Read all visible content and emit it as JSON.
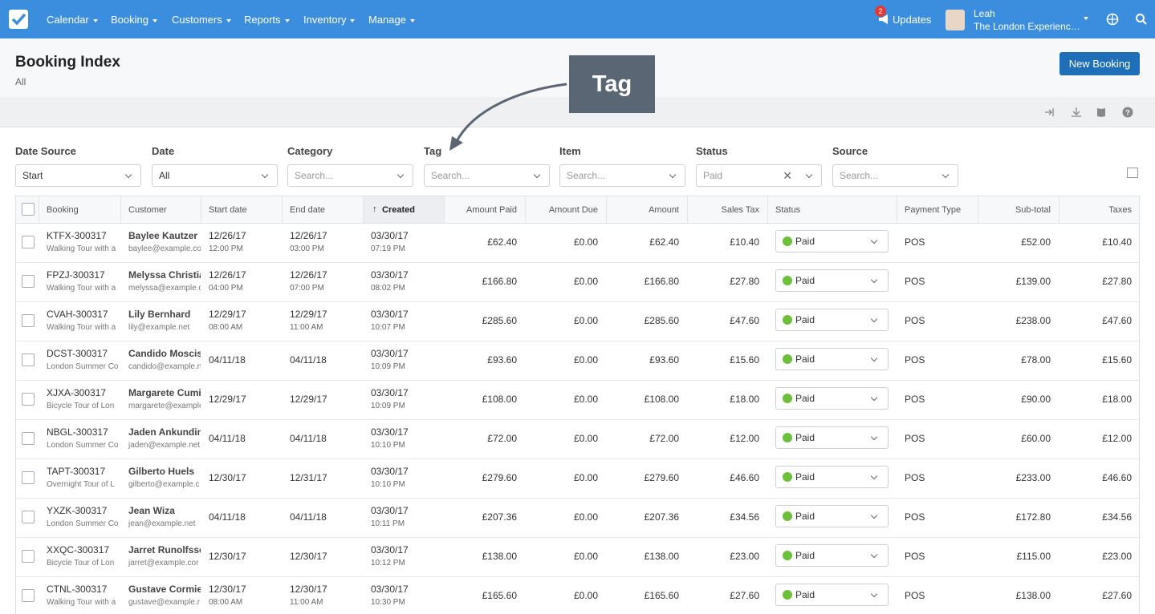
{
  "nav": {
    "menu": [
      "Calendar",
      "Booking",
      "Customers",
      "Reports",
      "Inventory",
      "Manage"
    ],
    "badge": "2",
    "updates": "Updates",
    "user": "Leah",
    "org": "The London Experienc…"
  },
  "header": {
    "title": "Booking Index",
    "subtitle": "All",
    "button": "New Booking"
  },
  "annotation": "Tag",
  "filters": [
    {
      "label": "Date Source",
      "value": "Start"
    },
    {
      "label": "Date",
      "value": "All"
    },
    {
      "label": "Category",
      "value": "Search..."
    },
    {
      "label": "Tag",
      "value": "Search..."
    },
    {
      "label": "Item",
      "value": "Search..."
    },
    {
      "label": "Status",
      "value": "Paid"
    },
    {
      "label": "Source",
      "value": "Search..."
    }
  ],
  "table": {
    "columns": [
      "Booking",
      "Customer",
      "Start date",
      "End date",
      "Created",
      "Amount Paid",
      "Amount Due",
      "Amount",
      "Sales Tax",
      "Status",
      "Payment Type",
      "Sub-total",
      "Taxes"
    ],
    "rows": [
      [
        [
          "KTFX-300317",
          "Walking Tour with a"
        ],
        [
          "Baylee Kautzer",
          "baylee@example.co"
        ],
        [
          "12/26/17",
          "12:00 PM"
        ],
        [
          "12/26/17",
          "03:00 PM"
        ],
        [
          "03/30/17",
          "07:19 PM"
        ],
        [
          "£62.40"
        ],
        [
          "£0.00"
        ],
        [
          "£62.40"
        ],
        [
          "£10.40"
        ],
        [
          "Paid"
        ],
        [
          "POS"
        ],
        [
          "£52.00"
        ],
        [
          "£10.40"
        ]
      ],
      [
        [
          "FPZJ-300317",
          "Walking Tour with a"
        ],
        [
          "Melyssa Christia",
          "melyssa@example.c"
        ],
        [
          "12/26/17",
          "04:00 PM"
        ],
        [
          "12/26/17",
          "07:00 PM"
        ],
        [
          "03/30/17",
          "08:02 PM"
        ],
        [
          "£166.80"
        ],
        [
          "£0.00"
        ],
        [
          "£166.80"
        ],
        [
          "£27.80"
        ],
        [
          "Paid"
        ],
        [
          "POS"
        ],
        [
          "£139.00"
        ],
        [
          "£27.80"
        ]
      ],
      [
        [
          "CVAH-300317",
          "Walking Tour with a"
        ],
        [
          "Lily Bernhard",
          "lily@example.net"
        ],
        [
          "12/29/17",
          "08:00 AM"
        ],
        [
          "12/29/17",
          "11:00 AM"
        ],
        [
          "03/30/17",
          "10:07 PM"
        ],
        [
          "£285.60"
        ],
        [
          "£0.00"
        ],
        [
          "£285.60"
        ],
        [
          "£47.60"
        ],
        [
          "Paid"
        ],
        [
          "POS"
        ],
        [
          "£238.00"
        ],
        [
          "£47.60"
        ]
      ],
      [
        [
          "DCST-300317",
          "London Summer Co"
        ],
        [
          "Candido Moscis",
          "candido@example.n"
        ],
        [
          "04/11/18"
        ],
        [
          "04/11/18"
        ],
        [
          "03/30/17",
          "10:09 PM"
        ],
        [
          "£93.60"
        ],
        [
          "£0.00"
        ],
        [
          "£93.60"
        ],
        [
          "£15.60"
        ],
        [
          "Paid"
        ],
        [
          "POS"
        ],
        [
          "£78.00"
        ],
        [
          "£15.60"
        ]
      ],
      [
        [
          "XJXA-300317",
          "Bicycle Tour of Lon"
        ],
        [
          "Margarete Cumi",
          "margarete@example"
        ],
        [
          "12/29/17"
        ],
        [
          "12/29/17"
        ],
        [
          "03/30/17",
          "10:09 PM"
        ],
        [
          "£108.00"
        ],
        [
          "£0.00"
        ],
        [
          "£108.00"
        ],
        [
          "£18.00"
        ],
        [
          "Paid"
        ],
        [
          "POS"
        ],
        [
          "£90.00"
        ],
        [
          "£18.00"
        ]
      ],
      [
        [
          "NBGL-300317",
          "London Summer Co"
        ],
        [
          "Jaden Ankundin",
          "jaden@example.net"
        ],
        [
          "04/11/18"
        ],
        [
          "04/11/18"
        ],
        [
          "03/30/17",
          "10:10 PM"
        ],
        [
          "£72.00"
        ],
        [
          "£0.00"
        ],
        [
          "£72.00"
        ],
        [
          "£12.00"
        ],
        [
          "Paid"
        ],
        [
          "POS"
        ],
        [
          "£60.00"
        ],
        [
          "£12.00"
        ]
      ],
      [
        [
          "TAPT-300317",
          "Overnight Tour of L"
        ],
        [
          "Gilberto Huels",
          "gilberto@example.c"
        ],
        [
          "12/30/17"
        ],
        [
          "12/31/17"
        ],
        [
          "03/30/17",
          "10:10 PM"
        ],
        [
          "£279.60"
        ],
        [
          "£0.00"
        ],
        [
          "£279.60"
        ],
        [
          "£46.60"
        ],
        [
          "Paid"
        ],
        [
          "POS"
        ],
        [
          "£233.00"
        ],
        [
          "£46.60"
        ]
      ],
      [
        [
          "YXZK-300317",
          "London Summer Co"
        ],
        [
          "Jean Wiza",
          "jean@example.net"
        ],
        [
          "04/11/18"
        ],
        [
          "04/11/18"
        ],
        [
          "03/30/17",
          "10:11 PM"
        ],
        [
          "£207.36"
        ],
        [
          "£0.00"
        ],
        [
          "£207.36"
        ],
        [
          "£34.56"
        ],
        [
          "Paid"
        ],
        [
          "POS"
        ],
        [
          "£172.80"
        ],
        [
          "£34.56"
        ]
      ],
      [
        [
          "XXQC-300317",
          "Bicycle Tour of Lon"
        ],
        [
          "Jarret Runolfssc",
          "jarret@example.cor"
        ],
        [
          "12/30/17"
        ],
        [
          "12/30/17"
        ],
        [
          "03/30/17",
          "10:12 PM"
        ],
        [
          "£138.00"
        ],
        [
          "£0.00"
        ],
        [
          "£138.00"
        ],
        [
          "£23.00"
        ],
        [
          "Paid"
        ],
        [
          "POS"
        ],
        [
          "£115.00"
        ],
        [
          "£23.00"
        ]
      ],
      [
        [
          "CTNL-300317",
          "Walking Tour with a"
        ],
        [
          "Gustave Cormie",
          "gustave@example.r"
        ],
        [
          "12/30/17",
          "08:00 AM"
        ],
        [
          "12/30/17",
          "11:00 AM"
        ],
        [
          "03/30/17",
          "10:30 PM"
        ],
        [
          "£165.60"
        ],
        [
          "£0.00"
        ],
        [
          "£165.60"
        ],
        [
          "£27.60"
        ],
        [
          "Paid"
        ],
        [
          "POS"
        ],
        [
          "£138.00"
        ],
        [
          "£27.60"
        ]
      ]
    ]
  }
}
